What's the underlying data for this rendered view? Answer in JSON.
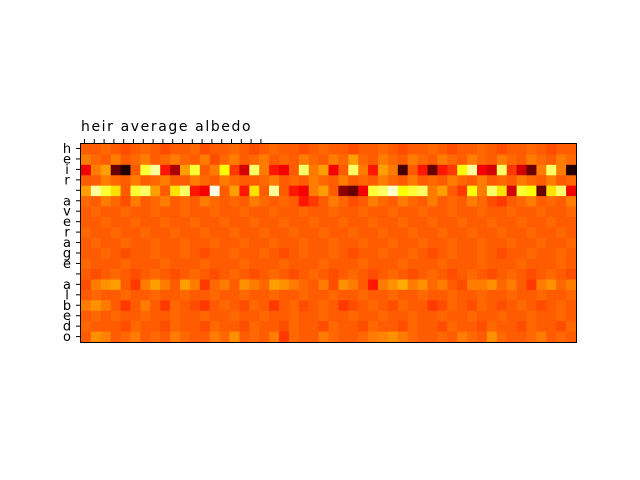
{
  "chart_data": {
    "type": "heatmap",
    "title": "heir average albedo",
    "colormap": "hot",
    "ticks_top": [
      "h",
      "e",
      "i",
      "r",
      " ",
      "a",
      "v",
      "e",
      "r",
      "a",
      "g",
      "e",
      " ",
      "a",
      "l",
      "b",
      "e",
      "d",
      "o"
    ],
    "ticks_left": [
      "h",
      "e",
      "i",
      "r",
      " ",
      "a",
      "v",
      "e",
      "r",
      "a",
      "g",
      "e",
      " ",
      "a",
      "l",
      "b",
      "e",
      "d",
      "o"
    ],
    "n_columns": 50,
    "value_range": [
      0,
      1
    ],
    "grid": false,
    "rows": [
      [
        0.5,
        0.5,
        0.52,
        0.5,
        0.48,
        0.5,
        0.52,
        0.5,
        0.48,
        0.5,
        0.5,
        0.52,
        0.48,
        0.5,
        0.5,
        0.52,
        0.5,
        0.48,
        0.5,
        0.52,
        0.5,
        0.5,
        0.48,
        0.5,
        0.52,
        0.5,
        0.5,
        0.48,
        0.5,
        0.5,
        0.52,
        0.5,
        0.48,
        0.5,
        0.5,
        0.52,
        0.5,
        0.48,
        0.5,
        0.5,
        0.52,
        0.5,
        0.48,
        0.5,
        0.5,
        0.52,
        0.5,
        0.48,
        0.5,
        0.5
      ],
      [
        0.55,
        0.52,
        0.5,
        0.55,
        0.5,
        0.52,
        0.55,
        0.5,
        0.52,
        0.55,
        0.52,
        0.5,
        0.55,
        0.48,
        0.52,
        0.55,
        0.5,
        0.52,
        0.55,
        0.5,
        0.52,
        0.5,
        0.55,
        0.52,
        0.5,
        0.55,
        0.52,
        0.6,
        0.52,
        0.5,
        0.55,
        0.52,
        0.5,
        0.55,
        0.52,
        0.5,
        0.55,
        0.52,
        0.5,
        0.55,
        0.52,
        0.5,
        0.55,
        0.52,
        0.5,
        0.55,
        0.52,
        0.5,
        0.55,
        0.52
      ],
      [
        0.35,
        0.55,
        0.6,
        0.15,
        0.05,
        0.5,
        0.8,
        0.9,
        0.4,
        0.25,
        0.6,
        0.8,
        0.5,
        0.55,
        0.75,
        0.45,
        0.3,
        0.85,
        0.55,
        0.4,
        0.35,
        0.5,
        0.85,
        0.55,
        0.6,
        0.35,
        0.5,
        0.85,
        0.55,
        0.4,
        0.6,
        0.55,
        0.1,
        0.5,
        0.4,
        0.15,
        0.4,
        0.45,
        0.75,
        0.9,
        0.35,
        0.3,
        0.85,
        0.45,
        0.3,
        0.15,
        0.55,
        0.85,
        0.55,
        0.05
      ],
      [
        0.5,
        0.5,
        0.55,
        0.52,
        0.5,
        0.55,
        0.5,
        0.52,
        0.55,
        0.5,
        0.5,
        0.55,
        0.52,
        0.5,
        0.55,
        0.52,
        0.5,
        0.5,
        0.52,
        0.55,
        0.5,
        0.52,
        0.5,
        0.55,
        0.52,
        0.5,
        0.55,
        0.5,
        0.52,
        0.5,
        0.55,
        0.52,
        0.5,
        0.55,
        0.5,
        0.52,
        0.5,
        0.55,
        0.52,
        0.5,
        0.55,
        0.5,
        0.52,
        0.5,
        0.55,
        0.52,
        0.5,
        0.55,
        0.5,
        0.52
      ],
      [
        0.6,
        0.9,
        0.8,
        0.7,
        0.5,
        0.8,
        0.85,
        0.6,
        0.5,
        0.7,
        0.85,
        0.4,
        0.35,
        0.97,
        0.5,
        0.6,
        0.4,
        0.7,
        0.5,
        0.9,
        0.5,
        0.4,
        0.35,
        0.55,
        0.6,
        0.5,
        0.2,
        0.15,
        0.35,
        0.8,
        0.85,
        0.95,
        0.75,
        0.8,
        0.85,
        0.55,
        0.6,
        0.5,
        0.45,
        0.75,
        0.55,
        0.85,
        0.7,
        0.3,
        0.8,
        0.75,
        0.15,
        0.7,
        0.85,
        0.35
      ],
      [
        0.52,
        0.5,
        0.55,
        0.52,
        0.48,
        0.55,
        0.5,
        0.52,
        0.55,
        0.5,
        0.52,
        0.5,
        0.55,
        0.52,
        0.5,
        0.52,
        0.5,
        0.55,
        0.52,
        0.5,
        0.52,
        0.5,
        0.4,
        0.45,
        0.5,
        0.55,
        0.52,
        0.48,
        0.5,
        0.55,
        0.52,
        0.5,
        0.55,
        0.52,
        0.5,
        0.55,
        0.5,
        0.52,
        0.5,
        0.55,
        0.52,
        0.48,
        0.45,
        0.5,
        0.52,
        0.55,
        0.5,
        0.52,
        0.5,
        0.55
      ],
      [
        0.5,
        0.52,
        0.5,
        0.5,
        0.52,
        0.5,
        0.5,
        0.52,
        0.5,
        0.5,
        0.52,
        0.5,
        0.5,
        0.52,
        0.5,
        0.5,
        0.52,
        0.5,
        0.5,
        0.52,
        0.5,
        0.5,
        0.52,
        0.5,
        0.5,
        0.52,
        0.5,
        0.5,
        0.52,
        0.5,
        0.5,
        0.52,
        0.5,
        0.5,
        0.52,
        0.5,
        0.5,
        0.52,
        0.5,
        0.5,
        0.52,
        0.5,
        0.5,
        0.52,
        0.5,
        0.5,
        0.52,
        0.5,
        0.5,
        0.52
      ],
      [
        0.5,
        0.5,
        0.52,
        0.5,
        0.5,
        0.52,
        0.5,
        0.5,
        0.52,
        0.5,
        0.5,
        0.52,
        0.5,
        0.5,
        0.52,
        0.5,
        0.5,
        0.52,
        0.5,
        0.5,
        0.52,
        0.5,
        0.5,
        0.52,
        0.5,
        0.5,
        0.52,
        0.5,
        0.5,
        0.52,
        0.5,
        0.5,
        0.52,
        0.5,
        0.5,
        0.52,
        0.5,
        0.5,
        0.52,
        0.5,
        0.5,
        0.52,
        0.5,
        0.5,
        0.52,
        0.5,
        0.5,
        0.52,
        0.5,
        0.5
      ],
      [
        0.52,
        0.5,
        0.5,
        0.52,
        0.5,
        0.5,
        0.52,
        0.5,
        0.5,
        0.52,
        0.5,
        0.5,
        0.52,
        0.5,
        0.5,
        0.52,
        0.5,
        0.5,
        0.52,
        0.5,
        0.5,
        0.52,
        0.5,
        0.5,
        0.52,
        0.5,
        0.5,
        0.52,
        0.5,
        0.5,
        0.52,
        0.5,
        0.5,
        0.52,
        0.5,
        0.5,
        0.52,
        0.5,
        0.5,
        0.52,
        0.5,
        0.5,
        0.52,
        0.5,
        0.5,
        0.52,
        0.5,
        0.5,
        0.52,
        0.5
      ],
      [
        0.5,
        0.52,
        0.5,
        0.5,
        0.52,
        0.5,
        0.5,
        0.52,
        0.5,
        0.5,
        0.52,
        0.5,
        0.5,
        0.52,
        0.5,
        0.5,
        0.52,
        0.5,
        0.5,
        0.52,
        0.5,
        0.5,
        0.52,
        0.5,
        0.5,
        0.52,
        0.5,
        0.5,
        0.52,
        0.5,
        0.5,
        0.52,
        0.5,
        0.5,
        0.52,
        0.5,
        0.5,
        0.52,
        0.5,
        0.5,
        0.52,
        0.5,
        0.5,
        0.52,
        0.5,
        0.5,
        0.52,
        0.5,
        0.5,
        0.52
      ],
      [
        0.5,
        0.5,
        0.52,
        0.5,
        0.48,
        0.5,
        0.5,
        0.52,
        0.5,
        0.5,
        0.52,
        0.5,
        0.48,
        0.5,
        0.5,
        0.52,
        0.5,
        0.5,
        0.52,
        0.5,
        0.48,
        0.5,
        0.52,
        0.5,
        0.5,
        0.52,
        0.5,
        0.48,
        0.5,
        0.5,
        0.52,
        0.5,
        0.5,
        0.52,
        0.5,
        0.48,
        0.5,
        0.52,
        0.5,
        0.5,
        0.52,
        0.5,
        0.48,
        0.5,
        0.5,
        0.52,
        0.5,
        0.5,
        0.52,
        0.5
      ],
      [
        0.52,
        0.5,
        0.5,
        0.5,
        0.52,
        0.5,
        0.5,
        0.5,
        0.52,
        0.5,
        0.5,
        0.5,
        0.52,
        0.5,
        0.5,
        0.5,
        0.52,
        0.5,
        0.5,
        0.5,
        0.52,
        0.5,
        0.5,
        0.5,
        0.52,
        0.5,
        0.5,
        0.5,
        0.52,
        0.5,
        0.5,
        0.5,
        0.52,
        0.5,
        0.5,
        0.5,
        0.52,
        0.5,
        0.5,
        0.5,
        0.52,
        0.5,
        0.5,
        0.5,
        0.52,
        0.5,
        0.5,
        0.5,
        0.52,
        0.5
      ],
      [
        0.5,
        0.48,
        0.5,
        0.52,
        0.5,
        0.48,
        0.5,
        0.52,
        0.5,
        0.48,
        0.5,
        0.52,
        0.5,
        0.48,
        0.5,
        0.52,
        0.5,
        0.48,
        0.5,
        0.52,
        0.5,
        0.48,
        0.5,
        0.52,
        0.5,
        0.48,
        0.5,
        0.52,
        0.5,
        0.48,
        0.5,
        0.52,
        0.5,
        0.48,
        0.5,
        0.52,
        0.5,
        0.48,
        0.5,
        0.52,
        0.5,
        0.48,
        0.5,
        0.52,
        0.5,
        0.48,
        0.5,
        0.52,
        0.5,
        0.48
      ],
      [
        0.48,
        0.55,
        0.58,
        0.6,
        0.5,
        0.45,
        0.55,
        0.6,
        0.55,
        0.5,
        0.6,
        0.55,
        0.45,
        0.52,
        0.55,
        0.5,
        0.58,
        0.55,
        0.52,
        0.6,
        0.58,
        0.55,
        0.52,
        0.5,
        0.55,
        0.48,
        0.58,
        0.55,
        0.5,
        0.4,
        0.55,
        0.58,
        0.62,
        0.55,
        0.58,
        0.52,
        0.55,
        0.5,
        0.48,
        0.55,
        0.55,
        0.58,
        0.52,
        0.55,
        0.5,
        0.45,
        0.55,
        0.58,
        0.52,
        0.55
      ],
      [
        0.5,
        0.52,
        0.5,
        0.5,
        0.52,
        0.5,
        0.5,
        0.52,
        0.5,
        0.5,
        0.52,
        0.5,
        0.5,
        0.52,
        0.5,
        0.5,
        0.52,
        0.5,
        0.5,
        0.52,
        0.5,
        0.5,
        0.52,
        0.5,
        0.5,
        0.52,
        0.5,
        0.5,
        0.52,
        0.5,
        0.5,
        0.52,
        0.5,
        0.5,
        0.52,
        0.5,
        0.5,
        0.52,
        0.5,
        0.5,
        0.52,
        0.5,
        0.5,
        0.52,
        0.5,
        0.5,
        0.52,
        0.5,
        0.5,
        0.52
      ],
      [
        0.55,
        0.58,
        0.55,
        0.5,
        0.45,
        0.5,
        0.55,
        0.5,
        0.45,
        0.52,
        0.5,
        0.48,
        0.45,
        0.5,
        0.52,
        0.5,
        0.48,
        0.52,
        0.5,
        0.45,
        0.5,
        0.52,
        0.48,
        0.5,
        0.52,
        0.5,
        0.45,
        0.48,
        0.5,
        0.52,
        0.5,
        0.48,
        0.52,
        0.5,
        0.5,
        0.45,
        0.48,
        0.52,
        0.5,
        0.48,
        0.52,
        0.5,
        0.48,
        0.5,
        0.52,
        0.5,
        0.48,
        0.5,
        0.52,
        0.5
      ],
      [
        0.5,
        0.52,
        0.5,
        0.52,
        0.5,
        0.5,
        0.52,
        0.5,
        0.5,
        0.52,
        0.5,
        0.5,
        0.52,
        0.5,
        0.5,
        0.52,
        0.5,
        0.5,
        0.52,
        0.5,
        0.5,
        0.52,
        0.5,
        0.5,
        0.52,
        0.5,
        0.5,
        0.52,
        0.5,
        0.5,
        0.52,
        0.5,
        0.5,
        0.52,
        0.5,
        0.5,
        0.52,
        0.5,
        0.5,
        0.52,
        0.5,
        0.5,
        0.52,
        0.5,
        0.5,
        0.52,
        0.5,
        0.5,
        0.52,
        0.5
      ],
      [
        0.52,
        0.5,
        0.5,
        0.5,
        0.48,
        0.52,
        0.5,
        0.5,
        0.48,
        0.52,
        0.5,
        0.5,
        0.48,
        0.52,
        0.5,
        0.5,
        0.48,
        0.52,
        0.5,
        0.5,
        0.48,
        0.52,
        0.5,
        0.5,
        0.48,
        0.52,
        0.5,
        0.5,
        0.48,
        0.52,
        0.5,
        0.5,
        0.48,
        0.52,
        0.5,
        0.5,
        0.48,
        0.52,
        0.5,
        0.5,
        0.48,
        0.52,
        0.5,
        0.5,
        0.48,
        0.52,
        0.5,
        0.5,
        0.48,
        0.52
      ],
      [
        0.5,
        0.58,
        0.56,
        0.5,
        0.52,
        0.55,
        0.5,
        0.52,
        0.5,
        0.55,
        0.52,
        0.5,
        0.5,
        0.55,
        0.52,
        0.58,
        0.5,
        0.52,
        0.5,
        0.55,
        0.45,
        0.52,
        0.5,
        0.5,
        0.55,
        0.52,
        0.5,
        0.5,
        0.52,
        0.55,
        0.56,
        0.58,
        0.55,
        0.52,
        0.5,
        0.5,
        0.52,
        0.5,
        0.55,
        0.52,
        0.5,
        0.58,
        0.52,
        0.5,
        0.5,
        0.52,
        0.55,
        0.5,
        0.52,
        0.5
      ]
    ]
  }
}
